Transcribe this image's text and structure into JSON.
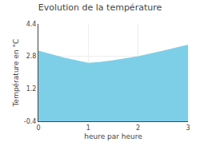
{
  "chart_data": {
    "type": "area",
    "title": "Evolution de la température",
    "x_label": "heure par heure",
    "y_label": "Température en °C",
    "x": [
      0,
      0.5,
      1.0,
      1.1,
      1.25,
      1.5,
      2.0,
      2.5,
      3.0
    ],
    "values": [
      3.05,
      2.72,
      2.45,
      2.46,
      2.5,
      2.58,
      2.78,
      3.05,
      3.35
    ],
    "color": "#7dcfe8",
    "xlim": [
      0,
      3
    ],
    "xticks": [
      0,
      1,
      2,
      3
    ],
    "ylim": [
      -0.4,
      4.4
    ],
    "yticks": [
      -0.4,
      1.2,
      2.8,
      4.4
    ],
    "grid": true
  }
}
